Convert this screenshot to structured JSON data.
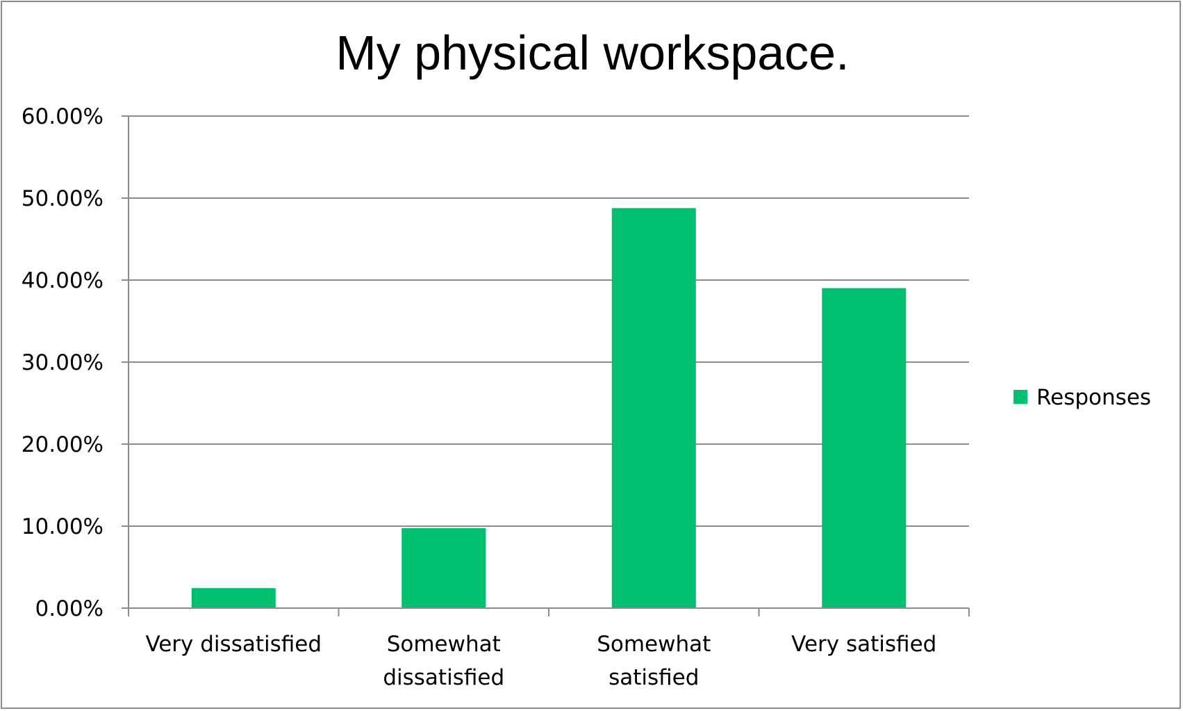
{
  "chart_data": {
    "type": "bar",
    "title": "My physical workspace.",
    "xlabel": "",
    "ylabel": "",
    "categories": [
      [
        "Very dissatisfied"
      ],
      [
        "Somewhat",
        "dissatisfied"
      ],
      [
        "Somewhat",
        "satisfied"
      ],
      [
        "Very satisfied"
      ]
    ],
    "series": [
      {
        "name": "Responses",
        "values": [
          2.44,
          9.76,
          48.78,
          39.02
        ],
        "color": "#00c070"
      }
    ],
    "ylim": [
      0,
      60
    ],
    "yticks": [
      0,
      10,
      20,
      30,
      40,
      50,
      60
    ],
    "ytick_labels": [
      "0.00%",
      "10.00%",
      "20.00%",
      "30.00%",
      "40.00%",
      "50.00%",
      "60.00%"
    ],
    "grid": true,
    "legend_position": "right"
  }
}
